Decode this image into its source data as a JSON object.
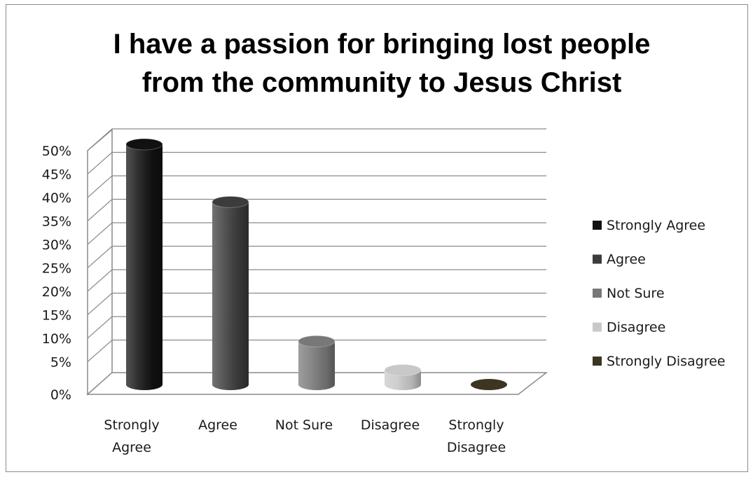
{
  "chart_data": {
    "type": "bar",
    "style": "3d-cylinder",
    "title_lines": [
      "I have a passion for bringing lost people",
      "from the community to Jesus Christ"
    ],
    "categories": [
      {
        "label_lines": [
          "Strongly",
          "Agree"
        ],
        "legend": "Strongly Agree",
        "value": 50,
        "color": "#111111"
      },
      {
        "label_lines": [
          "Agree"
        ],
        "legend": "Agree",
        "value": 38,
        "color": "#3c3c3c"
      },
      {
        "label_lines": [
          "Not Sure"
        ],
        "legend": "Not Sure",
        "value": 9,
        "color": "#787878"
      },
      {
        "label_lines": [
          "Disagree"
        ],
        "legend": "Disagree",
        "value": 3,
        "color": "#c8c8c8"
      },
      {
        "label_lines": [
          "Strongly",
          "Disagree"
        ],
        "legend": "Strongly Disagree",
        "value": 0,
        "color": "#3b3522"
      }
    ],
    "y_ticks": [
      "0%",
      "5%",
      "10%",
      "15%",
      "20%",
      "25%",
      "30%",
      "35%",
      "40%",
      "45%",
      "50%"
    ],
    "ylim": [
      0,
      50
    ],
    "y_unit": "%",
    "grid": true,
    "legend_position": "right"
  }
}
